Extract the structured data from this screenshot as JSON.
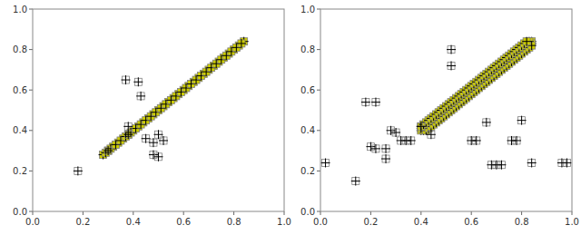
{
  "chart_data": [
    {
      "type": "scatter",
      "xlim": [
        0.0,
        1.0
      ],
      "ylim": [
        0.0,
        1.0
      ],
      "xticks": [
        {
          "value": 0.0,
          "label": "0.0"
        },
        0.2,
        0.4,
        0.6,
        0.8,
        {
          "value": 1.0,
          "label": "1.0"
        }
      ],
      "yticks": [
        {
          "value": 0.0,
          "label": "0.0"
        },
        0.2,
        0.4,
        0.6,
        0.8,
        {
          "value": 1.0,
          "label": "1.0"
        }
      ],
      "series": [
        {
          "color": "#cccc00",
          "marker": "square-plus",
          "x": [
            0.28,
            0.3,
            0.32,
            0.34,
            0.36,
            0.38,
            0.4,
            0.42,
            0.44,
            0.46,
            0.48,
            0.5,
            0.52,
            0.54,
            0.56,
            0.58,
            0.6,
            0.62,
            0.64,
            0.66,
            0.68,
            0.7,
            0.72,
            0.74,
            0.76,
            0.78,
            0.8,
            0.82,
            0.84,
            0.29,
            0.31,
            0.33,
            0.35,
            0.37,
            0.39,
            0.41,
            0.43,
            0.45,
            0.47,
            0.49,
            0.51,
            0.53,
            0.55,
            0.57,
            0.59,
            0.61,
            0.63,
            0.65,
            0.67,
            0.69,
            0.71,
            0.73,
            0.75,
            0.77,
            0.79,
            0.81,
            0.83
          ],
          "values": [
            0.28,
            0.3,
            0.32,
            0.34,
            0.36,
            0.38,
            0.4,
            0.42,
            0.44,
            0.46,
            0.48,
            0.5,
            0.52,
            0.54,
            0.56,
            0.58,
            0.6,
            0.62,
            0.64,
            0.66,
            0.68,
            0.7,
            0.72,
            0.74,
            0.76,
            0.78,
            0.8,
            0.82,
            0.84,
            0.29,
            0.31,
            0.33,
            0.35,
            0.37,
            0.39,
            0.41,
            0.43,
            0.45,
            0.47,
            0.49,
            0.51,
            0.53,
            0.55,
            0.57,
            0.59,
            0.61,
            0.63,
            0.65,
            0.67,
            0.69,
            0.71,
            0.73,
            0.75,
            0.77,
            0.79,
            0.81,
            0.83
          ]
        },
        {
          "marker": "square-plus",
          "x": [
            0.18,
            0.3,
            0.38,
            0.37,
            0.42,
            0.43,
            0.38,
            0.45,
            0.48,
            0.5,
            0.52,
            0.48,
            0.5
          ],
          "values": [
            0.2,
            0.3,
            0.38,
            0.65,
            0.64,
            0.57,
            0.42,
            0.36,
            0.34,
            0.38,
            0.35,
            0.28,
            0.27
          ]
        }
      ]
    },
    {
      "type": "scatter",
      "xlim": [
        0.0,
        1.0
      ],
      "ylim": [
        0.0,
        1.0
      ],
      "xticks": [
        {
          "value": 0.0,
          "label": "0.0"
        },
        0.2,
        0.4,
        0.6,
        0.8,
        {
          "value": 1.0,
          "label": "1.0"
        }
      ],
      "yticks": [
        {
          "value": 0.0,
          "label": "0.0"
        },
        0.2,
        0.4,
        0.6,
        0.8,
        {
          "value": 1.0,
          "label": "1.0"
        }
      ],
      "series": [
        {
          "color": "#cccc00",
          "marker": "square-plus",
          "x": [
            0.4,
            0.41,
            0.42,
            0.43,
            0.44,
            0.45,
            0.46,
            0.47,
            0.48,
            0.49,
            0.5,
            0.51,
            0.52,
            0.53,
            0.54,
            0.55,
            0.56,
            0.57,
            0.58,
            0.59,
            0.6,
            0.61,
            0.62,
            0.63,
            0.64,
            0.65,
            0.66,
            0.67,
            0.68,
            0.69,
            0.7,
            0.71,
            0.72,
            0.73,
            0.74,
            0.75,
            0.76,
            0.77,
            0.78,
            0.79,
            0.8,
            0.81,
            0.82,
            0.83,
            0.84,
            0.41,
            0.42,
            0.43,
            0.44,
            0.45,
            0.46,
            0.47,
            0.48,
            0.49,
            0.5,
            0.51,
            0.52,
            0.53,
            0.54,
            0.55,
            0.56,
            0.57,
            0.58,
            0.59,
            0.6,
            0.61,
            0.62,
            0.63,
            0.64,
            0.65,
            0.66,
            0.67,
            0.68,
            0.69,
            0.7,
            0.71,
            0.72,
            0.73,
            0.74,
            0.75,
            0.76,
            0.77,
            0.78,
            0.79,
            0.8,
            0.81,
            0.82,
            0.83,
            0.84,
            0.4,
            0.41,
            0.42,
            0.43,
            0.44,
            0.45,
            0.46,
            0.47,
            0.48,
            0.49,
            0.5,
            0.51,
            0.52,
            0.53,
            0.54,
            0.55,
            0.56,
            0.57,
            0.58,
            0.59,
            0.6,
            0.61,
            0.62,
            0.63,
            0.64,
            0.65,
            0.66,
            0.67,
            0.68,
            0.69,
            0.7,
            0.71,
            0.72,
            0.73,
            0.74,
            0.75,
            0.76,
            0.77,
            0.78,
            0.79,
            0.8,
            0.81,
            0.82,
            0.83,
            0.42,
            0.43,
            0.44,
            0.45,
            0.46,
            0.47,
            0.48,
            0.49,
            0.5,
            0.51,
            0.52,
            0.53,
            0.54,
            0.55,
            0.56,
            0.57,
            0.58,
            0.59,
            0.6,
            0.61,
            0.62,
            0.63,
            0.64,
            0.65,
            0.66,
            0.67,
            0.68,
            0.69,
            0.7,
            0.71,
            0.72,
            0.73,
            0.74,
            0.75,
            0.76,
            0.77,
            0.78,
            0.79,
            0.8,
            0.81,
            0.82,
            0.83,
            0.84,
            0.4,
            0.41,
            0.42,
            0.43,
            0.44,
            0.45,
            0.46,
            0.47,
            0.48,
            0.49,
            0.5,
            0.51,
            0.52,
            0.53,
            0.54,
            0.55,
            0.56,
            0.57,
            0.58,
            0.59,
            0.6,
            0.61,
            0.62,
            0.63,
            0.64,
            0.65,
            0.66,
            0.67,
            0.68,
            0.69,
            0.7,
            0.71,
            0.72,
            0.73,
            0.74,
            0.75,
            0.76,
            0.77,
            0.78,
            0.79,
            0.8,
            0.81,
            0.82
          ],
          "values": [
            0.4,
            0.41,
            0.42,
            0.43,
            0.44,
            0.45,
            0.46,
            0.47,
            0.48,
            0.49,
            0.5,
            0.51,
            0.52,
            0.53,
            0.54,
            0.55,
            0.56,
            0.57,
            0.58,
            0.59,
            0.6,
            0.61,
            0.62,
            0.63,
            0.64,
            0.65,
            0.66,
            0.67,
            0.68,
            0.69,
            0.7,
            0.71,
            0.72,
            0.73,
            0.74,
            0.75,
            0.76,
            0.77,
            0.78,
            0.79,
            0.8,
            0.81,
            0.82,
            0.83,
            0.84,
            0.4,
            0.41,
            0.42,
            0.43,
            0.44,
            0.45,
            0.46,
            0.47,
            0.48,
            0.49,
            0.5,
            0.51,
            0.52,
            0.53,
            0.54,
            0.55,
            0.56,
            0.57,
            0.58,
            0.59,
            0.6,
            0.61,
            0.62,
            0.63,
            0.64,
            0.65,
            0.66,
            0.67,
            0.68,
            0.69,
            0.7,
            0.71,
            0.72,
            0.73,
            0.74,
            0.75,
            0.76,
            0.77,
            0.78,
            0.79,
            0.8,
            0.81,
            0.82,
            0.83,
            0.41,
            0.42,
            0.43,
            0.44,
            0.45,
            0.46,
            0.47,
            0.48,
            0.49,
            0.5,
            0.51,
            0.52,
            0.53,
            0.54,
            0.55,
            0.56,
            0.57,
            0.58,
            0.59,
            0.6,
            0.61,
            0.62,
            0.63,
            0.64,
            0.65,
            0.66,
            0.67,
            0.68,
            0.69,
            0.7,
            0.71,
            0.72,
            0.73,
            0.74,
            0.75,
            0.76,
            0.77,
            0.78,
            0.79,
            0.8,
            0.81,
            0.82,
            0.83,
            0.84,
            0.4,
            0.41,
            0.42,
            0.43,
            0.44,
            0.45,
            0.46,
            0.47,
            0.48,
            0.49,
            0.5,
            0.51,
            0.52,
            0.53,
            0.54,
            0.55,
            0.56,
            0.57,
            0.58,
            0.59,
            0.6,
            0.61,
            0.62,
            0.63,
            0.64,
            0.65,
            0.66,
            0.67,
            0.68,
            0.69,
            0.7,
            0.71,
            0.72,
            0.73,
            0.74,
            0.75,
            0.76,
            0.77,
            0.78,
            0.79,
            0.8,
            0.81,
            0.82,
            0.42,
            0.43,
            0.44,
            0.45,
            0.46,
            0.47,
            0.48,
            0.49,
            0.5,
            0.51,
            0.52,
            0.53,
            0.54,
            0.55,
            0.56,
            0.57,
            0.58,
            0.59,
            0.6,
            0.61,
            0.62,
            0.63,
            0.64,
            0.65,
            0.66,
            0.67,
            0.68,
            0.69,
            0.7,
            0.71,
            0.72,
            0.73,
            0.74,
            0.75,
            0.76,
            0.77,
            0.78,
            0.79,
            0.8,
            0.81,
            0.82,
            0.83,
            0.84
          ]
        },
        {
          "marker": "square-plus",
          "x": [
            0.02,
            0.14,
            0.18,
            0.22,
            0.2,
            0.22,
            0.26,
            0.26,
            0.28,
            0.3,
            0.32,
            0.34,
            0.36,
            0.4,
            0.44,
            0.52,
            0.52,
            0.6,
            0.62,
            0.66,
            0.68,
            0.7,
            0.72,
            0.76,
            0.78,
            0.8,
            0.84,
            0.96,
            0.98
          ],
          "values": [
            0.24,
            0.15,
            0.54,
            0.54,
            0.32,
            0.31,
            0.31,
            0.26,
            0.4,
            0.39,
            0.35,
            0.35,
            0.35,
            0.42,
            0.38,
            0.8,
            0.72,
            0.35,
            0.35,
            0.44,
            0.23,
            0.23,
            0.23,
            0.35,
            0.35,
            0.45,
            0.24,
            0.24,
            0.24
          ]
        }
      ]
    }
  ]
}
